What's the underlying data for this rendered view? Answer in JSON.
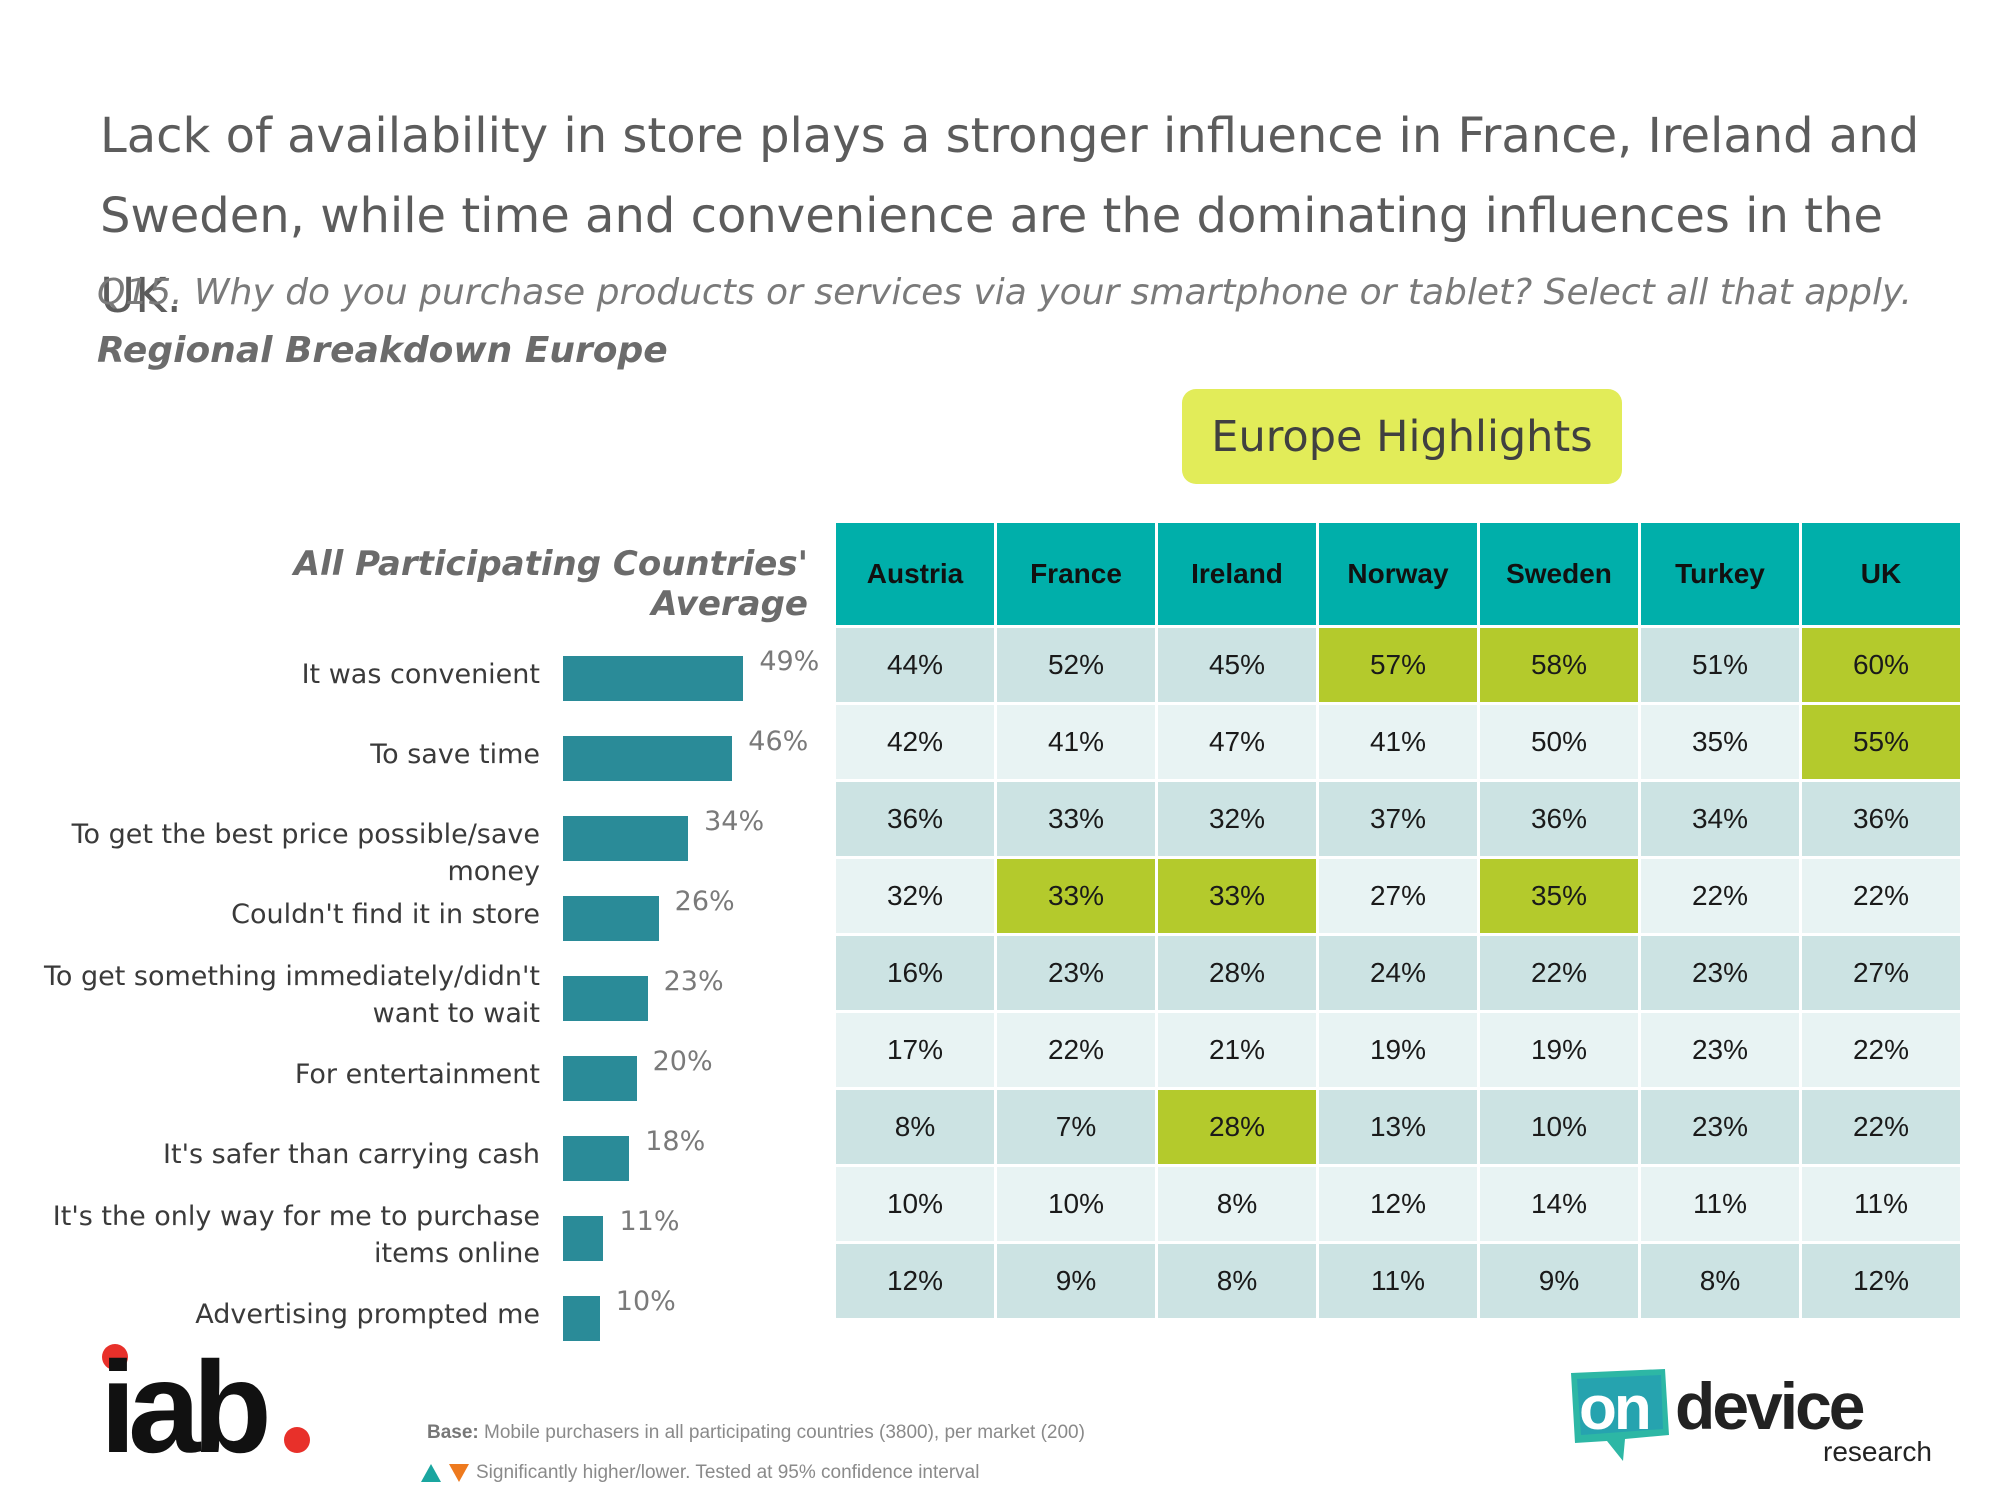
{
  "title": "Lack of availability in store plays a stronger influence in France, Ireland and Sweden, while time and convenience are the dominating influences in the UK.",
  "question": "Q15. Why do you purchase products or services via your smartphone or tablet? Select all that apply.",
  "subhead": "Regional Breakdown Europe",
  "highlights_badge": "Europe Highlights",
  "chart_data": [
    {
      "type": "bar",
      "title": "All Participating Countries' Average",
      "orientation": "horizontal",
      "categories": [
        "It was convenient",
        "To save time",
        "To get the best price possible/save money",
        "Couldn't find it in store",
        "To get something immediately/didn't want to wait",
        "For entertainment",
        "It's safer than carrying cash",
        "It's the only way for me to purchase items online",
        "Advertising prompted me"
      ],
      "values": [
        49,
        46,
        34,
        26,
        23,
        20,
        18,
        11,
        10
      ],
      "value_labels": [
        "49%",
        "46%",
        "34%",
        "26%",
        "23%",
        "20%",
        "18%",
        "11%",
        "10%"
      ],
      "unit": "%",
      "color": "#2a8b98"
    },
    {
      "type": "table",
      "title": "Europe Highlights",
      "columns": [
        "Austria",
        "France",
        "Ireland",
        "Norway",
        "Sweden",
        "Turkey",
        "UK"
      ],
      "rows": [
        {
          "values": [
            "44%",
            "52%",
            "45%",
            "57%",
            "58%",
            "51%",
            "60%"
          ],
          "highlight": [
            false,
            false,
            false,
            true,
            true,
            false,
            true
          ]
        },
        {
          "values": [
            "42%",
            "41%",
            "47%",
            "41%",
            "50%",
            "35%",
            "55%"
          ],
          "highlight": [
            false,
            false,
            false,
            false,
            false,
            false,
            true
          ]
        },
        {
          "values": [
            "36%",
            "33%",
            "32%",
            "37%",
            "36%",
            "34%",
            "36%"
          ],
          "highlight": [
            false,
            false,
            false,
            false,
            false,
            false,
            false
          ]
        },
        {
          "values": [
            "32%",
            "33%",
            "33%",
            "27%",
            "35%",
            "22%",
            "22%"
          ],
          "highlight": [
            false,
            true,
            true,
            false,
            true,
            false,
            false
          ]
        },
        {
          "values": [
            "16%",
            "23%",
            "28%",
            "24%",
            "22%",
            "23%",
            "27%"
          ],
          "highlight": [
            false,
            false,
            false,
            false,
            false,
            false,
            false
          ]
        },
        {
          "values": [
            "17%",
            "22%",
            "21%",
            "19%",
            "19%",
            "23%",
            "22%"
          ],
          "highlight": [
            false,
            false,
            false,
            false,
            false,
            false,
            false
          ]
        },
        {
          "values": [
            "8%",
            "7%",
            "28%",
            "13%",
            "10%",
            "23%",
            "22%"
          ],
          "highlight": [
            false,
            false,
            true,
            false,
            false,
            false,
            false
          ]
        },
        {
          "values": [
            "10%",
            "10%",
            "8%",
            "12%",
            "14%",
            "11%",
            "11%"
          ],
          "highlight": [
            false,
            false,
            false,
            false,
            false,
            false,
            false
          ]
        },
        {
          "values": [
            "12%",
            "9%",
            "8%",
            "11%",
            "9%",
            "8%",
            "12%"
          ],
          "highlight": [
            false,
            false,
            false,
            false,
            false,
            false,
            false
          ]
        }
      ],
      "highlight_color": "#b4ca2c",
      "header_color": "#00afaa"
    }
  ],
  "footer": {
    "base_label": "Base:",
    "base_text": "Mobile purchasers in all participating countries (3800), per market (200)",
    "significance_text": "Significantly higher/lower. Tested at 95% confidence interval"
  },
  "logos": {
    "iab": "iab",
    "ondevice_on": "on",
    "ondevice_device": "device",
    "ondevice_research": "research"
  },
  "colors": {
    "teal_header": "#00afaa",
    "bar": "#2a8b98",
    "highlight": "#b4ca2c",
    "badge": "#e2ec59",
    "iab_red": "#e8302a",
    "up_arrow": "#1aa6a0",
    "down_arrow": "#ee7a1e"
  }
}
